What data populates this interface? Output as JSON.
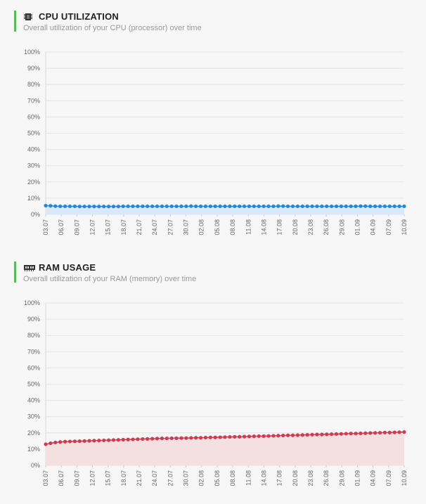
{
  "cpu": {
    "title": "CPU UTILIZATION",
    "subtitle": "Overall utilization of your CPU (processor) over time",
    "icon": "cpu-chip-icon"
  },
  "ram": {
    "title": "RAM USAGE",
    "subtitle": "Overall utilization of your RAM (memory) over time",
    "icon": "ram-module-icon"
  },
  "chart_data": [
    {
      "type": "line",
      "title": "CPU UTILIZATION",
      "color": "#1e88e5",
      "fill": "#d9e9fb",
      "ylim": [
        0,
        100
      ],
      "y_ticks": [
        "0%",
        "10%",
        "20%",
        "30%",
        "40%",
        "50%",
        "60%",
        "70%",
        "80%",
        "90%",
        "100%"
      ],
      "x_tick_labels": [
        "03.07",
        "06.07",
        "09.07",
        "12.07",
        "15.07",
        "18.07",
        "21.07",
        "24.07",
        "27.07",
        "30.07",
        "02.08",
        "05.08",
        "08.08",
        "11.08",
        "14.08",
        "17.08",
        "20.08",
        "23.08",
        "26.08",
        "29.08",
        "01.09",
        "04.09",
        "07.09",
        "10.09"
      ],
      "values": [
        5.4,
        5.3,
        5.1,
        5.0,
        5.0,
        5.0,
        5.0,
        4.9,
        4.9,
        4.9,
        4.9,
        4.9,
        4.9,
        4.9,
        4.9,
        4.9,
        5.0,
        5.0,
        5.0,
        5.0,
        5.0,
        5.0,
        5.0,
        5.0,
        5.0,
        5.0,
        5.0,
        5.0,
        5.0,
        5.0,
        5.1,
        5.0,
        5.0,
        5.0,
        5.0,
        5.0,
        5.0,
        5.0,
        5.0,
        5.0,
        5.0,
        5.0,
        5.0,
        5.0,
        5.0,
        5.0,
        5.0,
        5.0,
        5.1,
        5.1,
        5.0,
        5.0,
        5.0,
        5.0,
        5.0,
        5.0,
        5.0,
        5.0,
        5.0,
        5.0,
        5.0,
        5.0,
        5.0,
        5.0,
        5.0,
        5.1,
        5.1,
        5.0,
        5.0,
        5.0,
        5.0,
        5.0,
        5.0,
        5.0,
        5.0
      ]
    },
    {
      "type": "line",
      "title": "RAM USAGE",
      "color": "#d23a4f",
      "fill": "#f4dfe1",
      "ylim": [
        0,
        100
      ],
      "y_ticks": [
        "0%",
        "10%",
        "20%",
        "30%",
        "40%",
        "50%",
        "60%",
        "70%",
        "80%",
        "90%",
        "100%"
      ],
      "x_tick_labels": [
        "03.07",
        "06.07",
        "09.07",
        "12.07",
        "15.07",
        "18.07",
        "21.07",
        "24.07",
        "27.07",
        "30.07",
        "02.08",
        "05.08",
        "08.08",
        "11.08",
        "14.08",
        "17.08",
        "20.08",
        "23.08",
        "26.08",
        "29.08",
        "01.09",
        "04.09",
        "07.09",
        "10.09"
      ],
      "values": [
        13.0,
        13.6,
        14.1,
        14.4,
        14.6,
        14.7,
        14.8,
        14.9,
        15.0,
        15.1,
        15.2,
        15.3,
        15.4,
        15.5,
        15.6,
        15.7,
        15.8,
        15.9,
        16.0,
        16.1,
        16.2,
        16.3,
        16.4,
        16.5,
        16.6,
        16.6,
        16.7,
        16.7,
        16.8,
        16.8,
        16.9,
        17.0,
        17.0,
        17.1,
        17.2,
        17.2,
        17.3,
        17.4,
        17.5,
        17.6,
        17.6,
        17.7,
        17.8,
        17.9,
        18.0,
        18.0,
        18.1,
        18.2,
        18.3,
        18.4,
        18.5,
        18.5,
        18.6,
        18.7,
        18.8,
        18.9,
        19.0,
        19.0,
        19.1,
        19.2,
        19.3,
        19.4,
        19.5,
        19.6,
        19.6,
        19.7,
        19.8,
        19.9,
        20.0,
        20.1,
        20.2,
        20.2,
        20.3,
        20.4,
        20.5
      ]
    }
  ]
}
